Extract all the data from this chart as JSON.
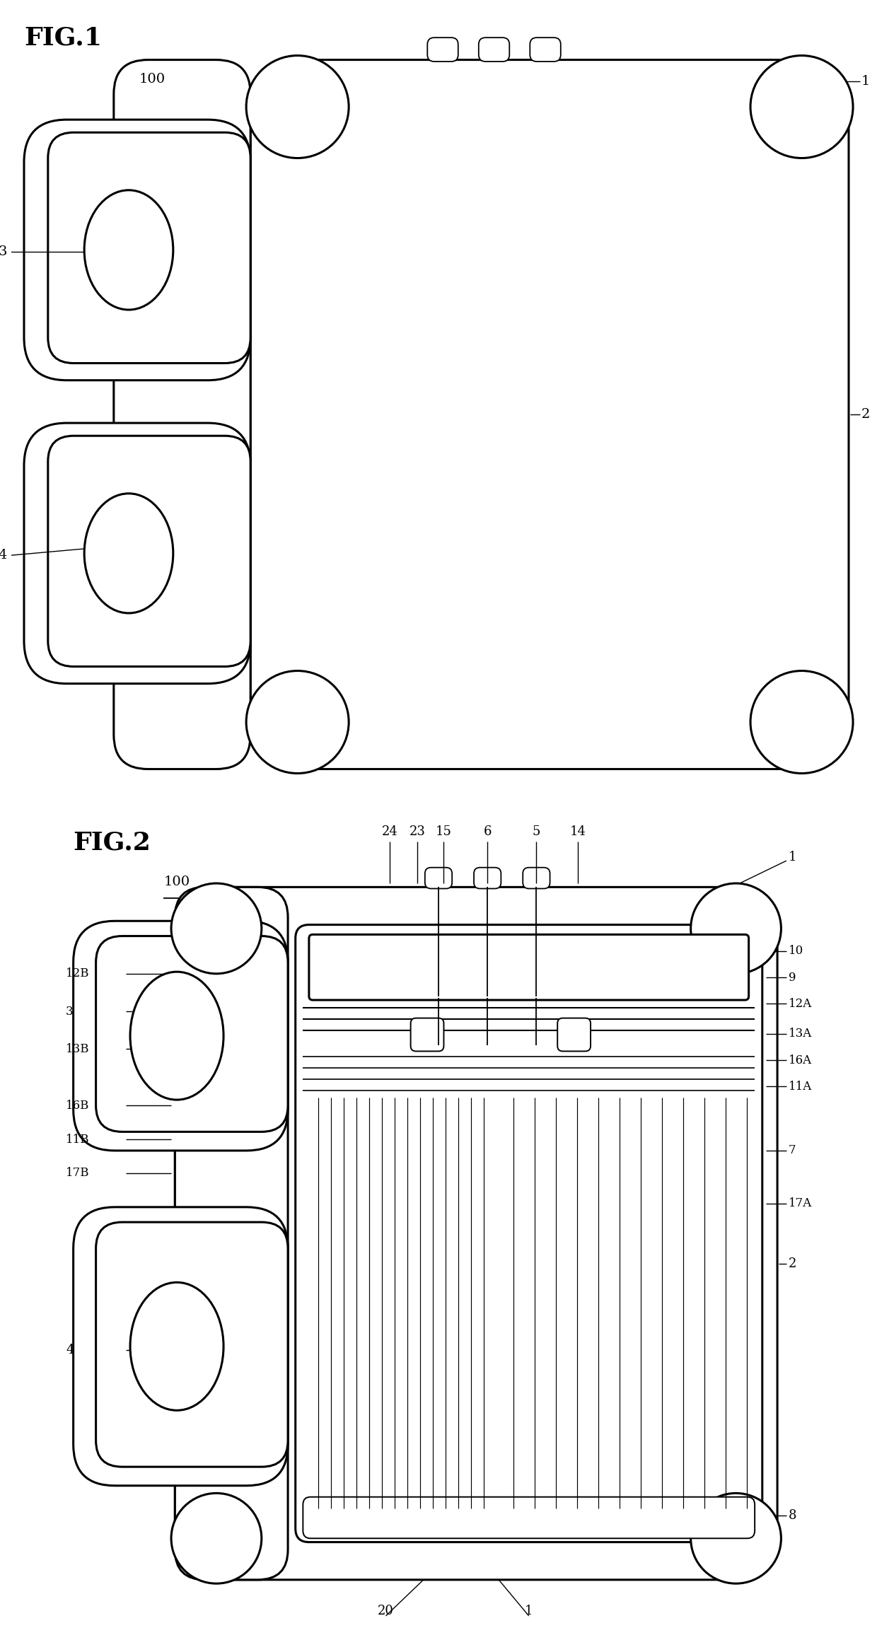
{
  "fig1_title": "FIG.1",
  "fig2_title": "FIG.2",
  "bg": "#ffffff",
  "lc": "#000000",
  "lw": 2.2,
  "fig1": {
    "label_100": "100",
    "label_1": "1",
    "label_2": "2",
    "label_3": "3",
    "label_4": "4"
  },
  "fig2": {
    "label_100": "100",
    "labels_top": [
      "24",
      "23",
      "15",
      "6",
      "5",
      "14"
    ],
    "labels_right": [
      "10",
      "9",
      "12A",
      "13A",
      "16A",
      "11A",
      "7",
      "17A"
    ],
    "labels_left": [
      "12B",
      "3",
      "13B",
      "16B",
      "11B",
      "17B"
    ],
    "label_1": "1",
    "label_2": "2",
    "label_4": "4",
    "label_7": "7",
    "label_8": "8",
    "label_20": "20"
  }
}
